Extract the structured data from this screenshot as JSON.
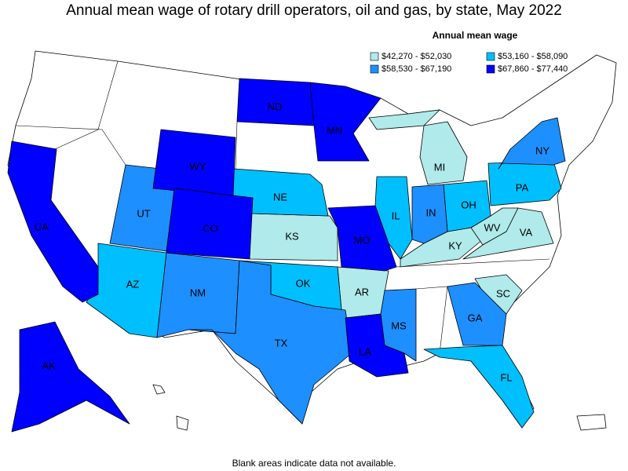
{
  "title": "Annual mean wage of rotary drill operators, oil and gas, by state, May 2022",
  "legend": {
    "title": "Annual mean wage",
    "bins": [
      {
        "label": "$42,270 - $52,030",
        "color": "#b0eaea",
        "states": [
          "KS",
          "MI",
          "KY",
          "WV",
          "VA",
          "AR",
          "SC"
        ]
      },
      {
        "label": "$53,160 - $58,090",
        "color": "#00bfff",
        "states": [
          "NE",
          "OK",
          "AZ",
          "IL",
          "OH",
          "PA",
          "FL"
        ]
      },
      {
        "label": "$58,530 - $67,190",
        "color": "#1e8fff",
        "states": [
          "UT",
          "NM",
          "TX",
          "IN",
          "MS",
          "GA",
          "NY"
        ]
      },
      {
        "label": "$67,860 - $77,440",
        "color": "#0000ff",
        "states": [
          "ND",
          "MN",
          "WY",
          "CO",
          "CA",
          "MO",
          "LA",
          "AK"
        ]
      }
    ]
  },
  "footnote": "Blank areas indicate data not available."
}
